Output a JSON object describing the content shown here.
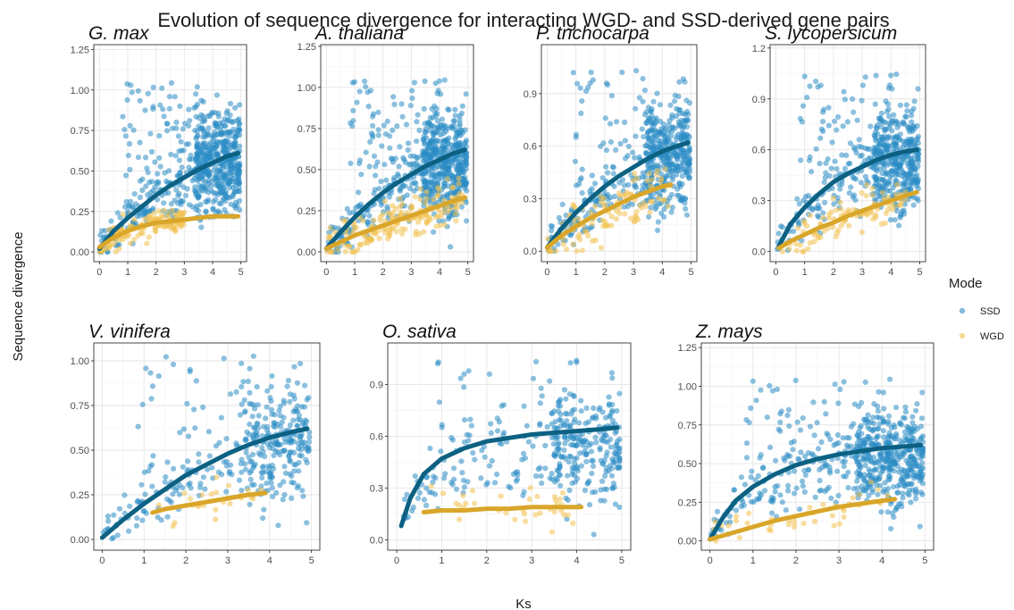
{
  "chart_data": {
    "type": "scatter",
    "title": "Evolution of sequence divergence for interacting WGD- and SSD-derived gene pairs",
    "xlabel": "Ks",
    "ylabel": "Sequence divergence",
    "legend": {
      "title": "Mode",
      "placement": "right",
      "entries": [
        {
          "name": "SSD",
          "color": "#2b8cc4"
        },
        {
          "name": "WGD",
          "color": "#f2c14e"
        }
      ]
    },
    "colors": {
      "SSD": "#2b8cc4",
      "WGD": "#f2c14e",
      "SSD_fit": "#0c6183",
      "WGD_fit": "#d9a62a"
    },
    "grid": true,
    "panels": [
      {
        "title": "G. max",
        "xlim": [
          -0.2,
          5.2
        ],
        "ylim": [
          -0.06,
          1.28
        ],
        "x_ticks": [
          0,
          1,
          2,
          3,
          4,
          5
        ],
        "y_ticks": [
          0.0,
          0.25,
          0.5,
          0.75,
          1.0,
          1.25
        ],
        "y_tick_labels": [
          "0.00",
          "0.25",
          "0.50",
          "0.75",
          "1.00",
          "1.25"
        ],
        "fit": {
          "SSD": {
            "x": [
              0.0,
              0.5,
              1.0,
              1.5,
              2.0,
              2.5,
              3.0,
              3.5,
              4.0,
              4.5,
              4.9
            ],
            "y": [
              0.02,
              0.13,
              0.21,
              0.28,
              0.35,
              0.41,
              0.46,
              0.51,
              0.55,
              0.59,
              0.61
            ]
          },
          "WGD": {
            "x": [
              0.0,
              0.5,
              1.0,
              1.5,
              2.0,
              2.5,
              3.0,
              3.5,
              4.0,
              4.5,
              4.9
            ],
            "y": [
              0.03,
              0.09,
              0.13,
              0.16,
              0.18,
              0.19,
              0.2,
              0.21,
              0.22,
              0.22,
              0.22
            ]
          }
        }
      },
      {
        "title": "A. thaliana",
        "xlim": [
          -0.2,
          5.2
        ],
        "ylim": [
          -0.06,
          1.26
        ],
        "x_ticks": [
          0,
          1,
          2,
          3,
          4,
          5
        ],
        "y_ticks": [
          0.0,
          0.25,
          0.5,
          0.75,
          1.0,
          1.25
        ],
        "y_tick_labels": [
          "0.00",
          "0.25",
          "0.50",
          "0.75",
          "1.00",
          "1.25"
        ],
        "fit": {
          "SSD": {
            "x": [
              0.0,
              0.5,
              1.0,
              1.5,
              2.0,
              2.5,
              3.0,
              3.5,
              4.0,
              4.5,
              4.9
            ],
            "y": [
              0.02,
              0.12,
              0.21,
              0.29,
              0.36,
              0.42,
              0.47,
              0.52,
              0.56,
              0.6,
              0.62
            ]
          },
          "WGD": {
            "x": [
              0.0,
              0.5,
              1.0,
              1.5,
              2.0,
              2.5,
              3.0,
              3.5,
              4.0,
              4.5,
              4.9
            ],
            "y": [
              0.02,
              0.06,
              0.1,
              0.13,
              0.16,
              0.19,
              0.22,
              0.25,
              0.28,
              0.31,
              0.33
            ]
          }
        }
      },
      {
        "title": "P. trichocarpa",
        "xlim": [
          -0.2,
          5.2
        ],
        "ylim": [
          -0.06,
          1.18
        ],
        "x_ticks": [
          0,
          1,
          2,
          3,
          4,
          5
        ],
        "y_ticks": [
          0.0,
          0.3,
          0.6,
          0.9
        ],
        "y_tick_labels": [
          "0.0",
          "0.3",
          "0.6",
          "0.9"
        ],
        "fit": {
          "SSD": {
            "x": [
              0.0,
              0.5,
              1.0,
              1.5,
              2.0,
              2.5,
              3.0,
              3.5,
              4.0,
              4.5,
              4.9
            ],
            "y": [
              0.02,
              0.13,
              0.22,
              0.3,
              0.37,
              0.43,
              0.48,
              0.53,
              0.57,
              0.6,
              0.62
            ]
          },
          "WGD": {
            "x": [
              0.0,
              0.5,
              1.0,
              1.5,
              2.0,
              2.5,
              3.0,
              3.5,
              4.0,
              4.3
            ],
            "y": [
              0.02,
              0.09,
              0.14,
              0.19,
              0.23,
              0.27,
              0.31,
              0.34,
              0.37,
              0.38
            ]
          }
        }
      },
      {
        "title": "S. lycopersicum",
        "xlim": [
          -0.2,
          5.2
        ],
        "ylim": [
          -0.06,
          1.22
        ],
        "x_ticks": [
          0,
          1,
          2,
          3,
          4,
          5
        ],
        "y_ticks": [
          0.0,
          0.3,
          0.6,
          0.9,
          1.2
        ],
        "y_tick_labels": [
          "0.0",
          "0.3",
          "0.6",
          "0.9",
          "1.2"
        ],
        "fit": {
          "SSD": {
            "x": [
              0.1,
              0.5,
              1.0,
              1.5,
              2.0,
              2.5,
              3.0,
              3.5,
              4.0,
              4.5,
              4.9
            ],
            "y": [
              0.03,
              0.16,
              0.26,
              0.34,
              0.41,
              0.46,
              0.5,
              0.54,
              0.57,
              0.59,
              0.6
            ]
          },
          "WGD": {
            "x": [
              0.1,
              0.5,
              1.0,
              1.5,
              2.0,
              2.5,
              3.0,
              3.5,
              4.0,
              4.5,
              4.9
            ],
            "y": [
              0.02,
              0.06,
              0.1,
              0.14,
              0.17,
              0.21,
              0.24,
              0.27,
              0.3,
              0.33,
              0.35
            ]
          }
        }
      },
      {
        "title": "V. vinifera",
        "xlim": [
          -0.2,
          5.2
        ],
        "ylim": [
          -0.06,
          1.1
        ],
        "x_ticks": [
          0,
          1,
          2,
          3,
          4,
          5
        ],
        "y_ticks": [
          0.0,
          0.25,
          0.5,
          0.75,
          1.0
        ],
        "y_tick_labels": [
          "0.00",
          "0.25",
          "0.50",
          "0.75",
          "1.00"
        ],
        "fit": {
          "SSD": {
            "x": [
              0.0,
              0.5,
              1.0,
              1.5,
              2.0,
              2.5,
              3.0,
              3.5,
              4.0,
              4.5,
              4.9
            ],
            "y": [
              0.01,
              0.11,
              0.2,
              0.28,
              0.36,
              0.42,
              0.48,
              0.53,
              0.57,
              0.6,
              0.62
            ]
          },
          "WGD": {
            "x": [
              1.2,
              1.5,
              2.0,
              2.5,
              3.0,
              3.5,
              3.9
            ],
            "y": [
              0.15,
              0.17,
              0.19,
              0.21,
              0.23,
              0.25,
              0.26
            ]
          }
        }
      },
      {
        "title": "O. sativa",
        "xlim": [
          -0.2,
          5.2
        ],
        "ylim": [
          -0.06,
          1.14
        ],
        "x_ticks": [
          0,
          1,
          2,
          3,
          4,
          5
        ],
        "y_ticks": [
          0.0,
          0.3,
          0.6,
          0.9
        ],
        "y_tick_labels": [
          "0.0",
          "0.3",
          "0.6",
          "0.9"
        ],
        "fit": {
          "SSD": {
            "x": [
              0.1,
              0.3,
              0.6,
              1.0,
              1.5,
              2.0,
              2.5,
              3.0,
              3.5,
              4.0,
              4.5,
              4.9
            ],
            "y": [
              0.08,
              0.24,
              0.38,
              0.47,
              0.53,
              0.57,
              0.59,
              0.61,
              0.62,
              0.63,
              0.64,
              0.65
            ]
          },
          "WGD": {
            "x": [
              0.6,
              1.0,
              1.5,
              2.0,
              2.5,
              3.0,
              3.5,
              4.1
            ],
            "y": [
              0.16,
              0.17,
              0.17,
              0.18,
              0.18,
              0.19,
              0.19,
              0.19
            ]
          }
        }
      },
      {
        "title": "Z. mays",
        "xlim": [
          -0.2,
          5.2
        ],
        "ylim": [
          -0.06,
          1.28
        ],
        "x_ticks": [
          0,
          1,
          2,
          3,
          4,
          5
        ],
        "y_ticks": [
          0.0,
          0.25,
          0.5,
          0.75,
          1.0,
          1.25
        ],
        "y_tick_labels": [
          "0.00",
          "0.25",
          "0.50",
          "0.75",
          "1.00",
          "1.25"
        ],
        "fit": {
          "SSD": {
            "x": [
              0.0,
              0.3,
              0.6,
              1.0,
              1.5,
              2.0,
              2.5,
              3.0,
              3.5,
              4.0,
              4.5,
              4.9
            ],
            "y": [
              0.01,
              0.15,
              0.26,
              0.35,
              0.43,
              0.49,
              0.53,
              0.56,
              0.58,
              0.6,
              0.61,
              0.62
            ]
          },
          "WGD": {
            "x": [
              0.0,
              0.5,
              1.0,
              1.5,
              2.0,
              2.5,
              3.0,
              3.5,
              4.0,
              4.3
            ],
            "y": [
              0.01,
              0.05,
              0.09,
              0.13,
              0.16,
              0.19,
              0.22,
              0.24,
              0.26,
              0.27
            ]
          }
        }
      }
    ]
  }
}
